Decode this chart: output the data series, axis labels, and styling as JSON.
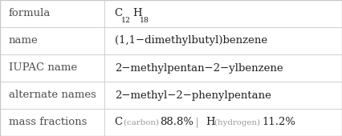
{
  "rows": [
    {
      "label": "formula",
      "value": "formula_special"
    },
    {
      "label": "name",
      "value": "(1,1−dimethylbutyl)benzene"
    },
    {
      "label": "IUPAC name",
      "value": "2−methylpentan−2−ylbenzene"
    },
    {
      "label": "alternate names",
      "value": "2−methyl−2−phenylpentane"
    },
    {
      "label": "mass fractions",
      "value": "mass_fractions_special"
    }
  ],
  "col_split": 0.305,
  "background_color": "#ffffff",
  "border_color": "#c8c8c8",
  "label_color": "#505050",
  "value_color": "#222222",
  "font_size": 9.5,
  "divider_color": "#d0d0d0",
  "element_color": "#222222",
  "element_label_color": "#999999",
  "percent_color": "#222222"
}
